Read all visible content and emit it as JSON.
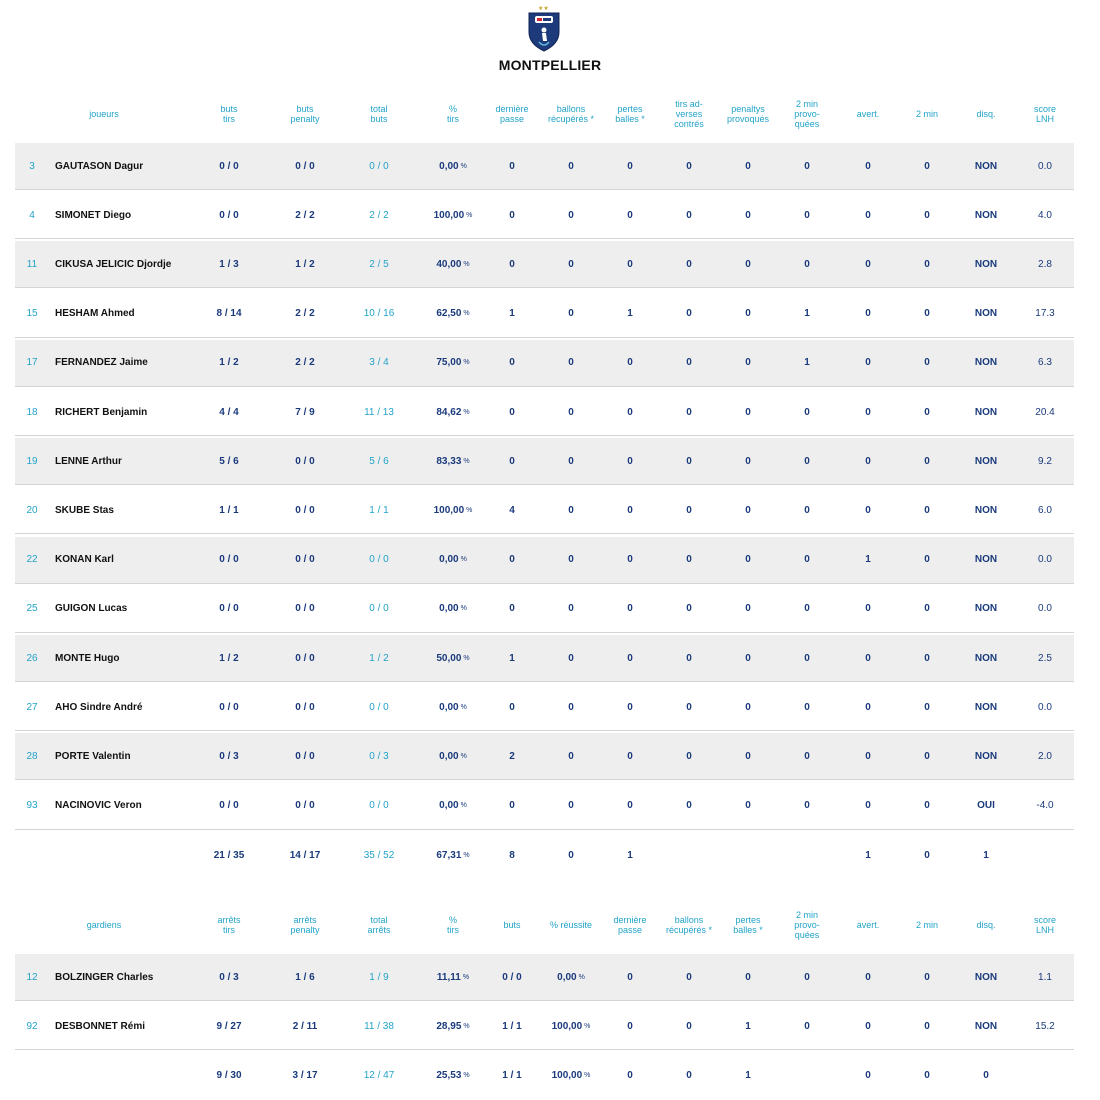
{
  "team": {
    "name": "MONTPELLIER"
  },
  "icons": {
    "logo": "club-shield-icon"
  },
  "colors": {
    "header": "#22a3c9",
    "value": "#1a3a7c",
    "row_alt": "#eeeeee"
  },
  "players": {
    "headers": {
      "name": "joueurs",
      "cols": [
        "buts\ntirs",
        "buts\npenalty",
        "total\nbuts",
        "%\ntirs",
        "dernière\npasse",
        "ballons\nrécupérés *",
        "pertes\nballes *",
        "tirs ad-\nverses\ncontrés",
        "penaltys\nprovoqués",
        "2 min\nprovo-\nquées",
        "avert.",
        "2 min",
        "disq.",
        "score\nLNH"
      ]
    },
    "rows": [
      {
        "num": "3",
        "name": "GAUTASON Dagur",
        "vals": [
          "0 / 0",
          "0 / 0",
          "0 / 0",
          "0,00",
          "0",
          "0",
          "0",
          "0",
          "0",
          "0",
          "0",
          "0",
          "NON",
          "0.0"
        ]
      },
      {
        "num": "4",
        "name": "SIMONET Diego",
        "vals": [
          "0 / 0",
          "2 / 2",
          "2 / 2",
          "100,00",
          "0",
          "0",
          "0",
          "0",
          "0",
          "0",
          "0",
          "0",
          "NON",
          "4.0"
        ]
      },
      {
        "num": "11",
        "name": "CIKUSA JELICIC Djordje",
        "vals": [
          "1 / 3",
          "1 / 2",
          "2 / 5",
          "40,00",
          "0",
          "0",
          "0",
          "0",
          "0",
          "0",
          "0",
          "0",
          "NON",
          "2.8"
        ]
      },
      {
        "num": "15",
        "name": "HESHAM Ahmed",
        "vals": [
          "8 / 14",
          "2 / 2",
          "10 / 16",
          "62,50",
          "1",
          "0",
          "1",
          "0",
          "0",
          "1",
          "0",
          "0",
          "NON",
          "17.3"
        ]
      },
      {
        "num": "17",
        "name": "FERNANDEZ Jaime",
        "vals": [
          "1 / 2",
          "2 / 2",
          "3 / 4",
          "75,00",
          "0",
          "0",
          "0",
          "0",
          "0",
          "1",
          "0",
          "0",
          "NON",
          "6.3"
        ]
      },
      {
        "num": "18",
        "name": "RICHERT Benjamin",
        "vals": [
          "4 / 4",
          "7 / 9",
          "11 / 13",
          "84,62",
          "0",
          "0",
          "0",
          "0",
          "0",
          "0",
          "0",
          "0",
          "NON",
          "20.4"
        ]
      },
      {
        "num": "19",
        "name": "LENNE Arthur",
        "vals": [
          "5 / 6",
          "0 / 0",
          "5 / 6",
          "83,33",
          "0",
          "0",
          "0",
          "0",
          "0",
          "0",
          "0",
          "0",
          "NON",
          "9.2"
        ]
      },
      {
        "num": "20",
        "name": "SKUBE Stas",
        "vals": [
          "1 / 1",
          "0 / 0",
          "1 / 1",
          "100,00",
          "4",
          "0",
          "0",
          "0",
          "0",
          "0",
          "0",
          "0",
          "NON",
          "6.0"
        ]
      },
      {
        "num": "22",
        "name": "KONAN Karl",
        "vals": [
          "0 / 0",
          "0 / 0",
          "0 / 0",
          "0,00",
          "0",
          "0",
          "0",
          "0",
          "0",
          "0",
          "1",
          "0",
          "NON",
          "0.0"
        ]
      },
      {
        "num": "25",
        "name": "GUIGON Lucas",
        "vals": [
          "0 / 0",
          "0 / 0",
          "0 / 0",
          "0,00",
          "0",
          "0",
          "0",
          "0",
          "0",
          "0",
          "0",
          "0",
          "NON",
          "0.0"
        ]
      },
      {
        "num": "26",
        "name": "MONTE Hugo",
        "vals": [
          "1 / 2",
          "0 / 0",
          "1 / 2",
          "50,00",
          "1",
          "0",
          "0",
          "0",
          "0",
          "0",
          "0",
          "0",
          "NON",
          "2.5"
        ]
      },
      {
        "num": "27",
        "name": "AHO Sindre André",
        "vals": [
          "0 / 0",
          "0 / 0",
          "0 / 0",
          "0,00",
          "0",
          "0",
          "0",
          "0",
          "0",
          "0",
          "0",
          "0",
          "NON",
          "0.0"
        ]
      },
      {
        "num": "28",
        "name": "PORTE Valentin",
        "vals": [
          "0 / 3",
          "0 / 0",
          "0 / 3",
          "0,00",
          "2",
          "0",
          "0",
          "0",
          "0",
          "0",
          "0",
          "0",
          "NON",
          "2.0"
        ]
      },
      {
        "num": "93",
        "name": "NACINOVIC Veron",
        "vals": [
          "0 / 0",
          "0 / 0",
          "0 / 0",
          "0,00",
          "0",
          "0",
          "0",
          "0",
          "0",
          "0",
          "0",
          "0",
          "OUI",
          "-4.0"
        ]
      }
    ],
    "totals": [
      "21 / 35",
      "14 / 17",
      "35 / 52",
      "67,31",
      "8",
      "0",
      "1",
      "",
      "",
      "",
      "1",
      "0",
      "1",
      ""
    ]
  },
  "goalkeepers": {
    "headers": {
      "name": "gardiens",
      "cols": [
        "arrêts\ntirs",
        "arrêts\npenalty",
        "total\narrêts",
        "%\ntirs",
        "buts",
        "% réussite",
        "dernière\npasse",
        "ballons\nrécupérés *",
        "pertes\nballes *",
        "2 min\nprovo-\nquées",
        "avert.",
        "2 min",
        "disq.",
        "score\nLNH"
      ]
    },
    "rows": [
      {
        "num": "12",
        "name": "BOLZINGER Charles",
        "vals": [
          "0 / 3",
          "1 / 6",
          "1 / 9",
          "11,11",
          "0 / 0",
          "0,00",
          "0",
          "0",
          "0",
          "0",
          "0",
          "0",
          "NON",
          "1.1"
        ]
      },
      {
        "num": "92",
        "name": "DESBONNET Rémi",
        "vals": [
          "9 / 27",
          "2 / 11",
          "11 / 38",
          "28,95",
          "1 / 1",
          "100,00",
          "0",
          "0",
          "1",
          "0",
          "0",
          "0",
          "NON",
          "15.2"
        ]
      }
    ],
    "totals": [
      "9 / 30",
      "3 / 17",
      "12 / 47",
      "25,53",
      "1 / 1",
      "100,00",
      "0",
      "0",
      "1",
      "",
      "0",
      "0",
      "0",
      ""
    ]
  },
  "pct_unit": "%"
}
